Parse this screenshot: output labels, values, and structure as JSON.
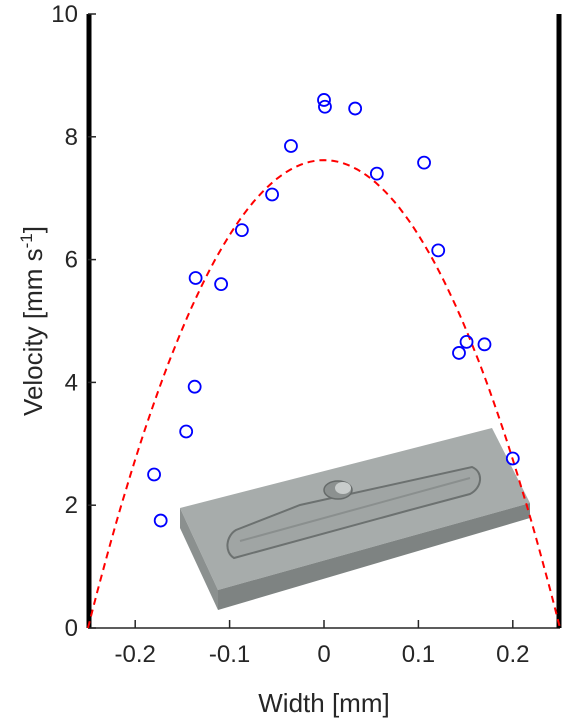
{
  "chart_data": {
    "type": "scatter",
    "xlabel": "Width [mm]",
    "ylabel": {
      "main": "Velocity [mm s",
      "superscript": "-1",
      "close": "]"
    },
    "xlim": [
      -0.25,
      0.25
    ],
    "ylim": [
      0,
      10
    ],
    "xticks": [
      -0.2,
      -0.1,
      0,
      0.1,
      0.2
    ],
    "xtick_labels": [
      "-0.2",
      "-0.1",
      "0",
      "0.1",
      "0.2"
    ],
    "yticks": [
      0,
      2,
      4,
      6,
      8,
      10
    ],
    "ytick_labels": [
      "0",
      "2",
      "4",
      "6",
      "8",
      "10"
    ],
    "grid": false,
    "series": [
      {
        "kind": "points",
        "marker": "open-circle",
        "color": "#0000ff",
        "x": [
          -0.18,
          -0.173,
          -0.146,
          -0.137,
          -0.136,
          -0.109,
          -0.087,
          -0.055,
          -0.035,
          0.0,
          0.001,
          0.033,
          0.056,
          0.106,
          0.121,
          0.143,
          0.151,
          0.17,
          0.2
        ],
        "y": [
          2.5,
          1.75,
          3.2,
          3.93,
          5.7,
          5.6,
          6.48,
          7.06,
          7.85,
          8.6,
          8.49,
          8.46,
          7.4,
          7.58,
          6.15,
          4.48,
          4.66,
          4.62,
          2.76
        ]
      },
      {
        "kind": "fit",
        "line_style": "dashed",
        "color": "#ff0000",
        "equation": "y = 7.62 * (1 - (x/0.25)^2)",
        "vmax": 7.62,
        "half_width": 0.25
      }
    ],
    "walls": {
      "color": "#000000",
      "at_x": [
        -0.25,
        0.25
      ]
    },
    "inset": {
      "description": "3D rendering of grey chip with channel",
      "color": "#9ea3a1"
    }
  }
}
